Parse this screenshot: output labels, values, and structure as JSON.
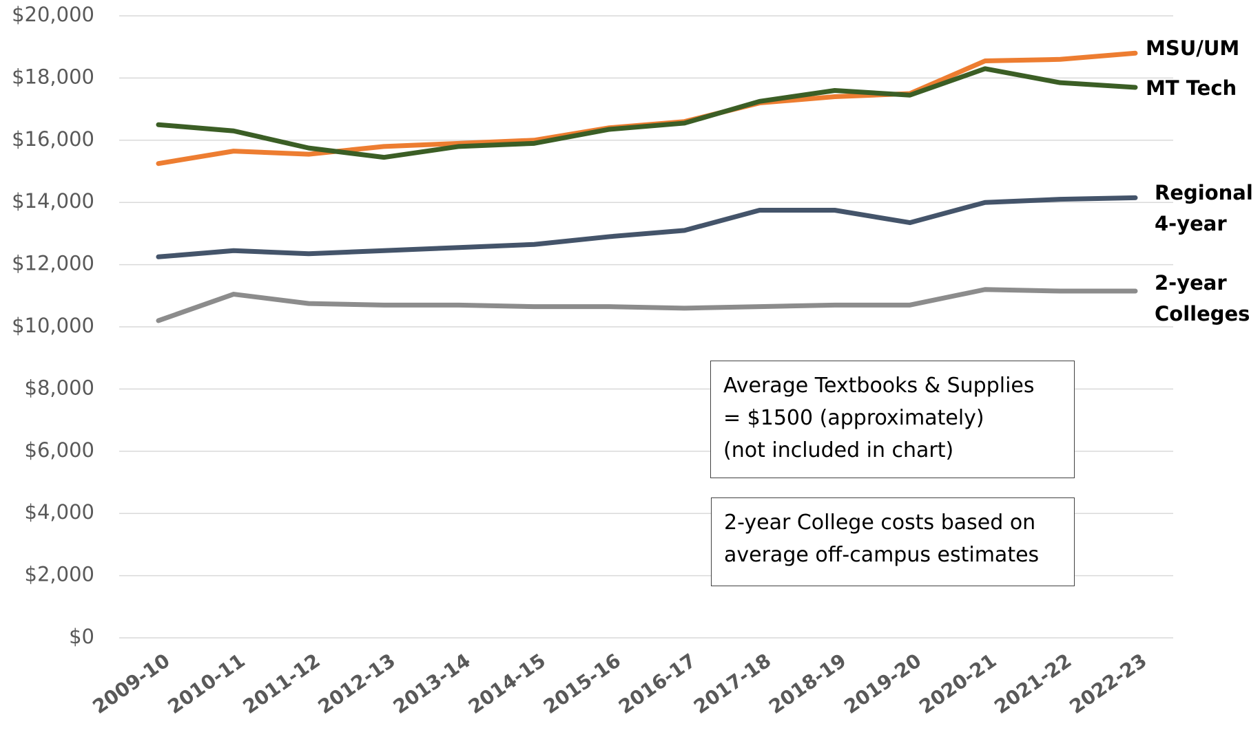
{
  "chart_data": {
    "type": "line",
    "categories": [
      "2009-10",
      "2010-11",
      "2011-12",
      "2012-13",
      "2013-14",
      "2014-15",
      "2015-16",
      "2016-17",
      "2017-18",
      "2018-19",
      "2019-20",
      "2020-21",
      "2021-22",
      "2022-23"
    ],
    "series": [
      {
        "name": "MSU/UM",
        "color": "#ed7d31",
        "values": [
          15250,
          15650,
          15550,
          15800,
          15900,
          16000,
          16400,
          16600,
          17200,
          17400,
          17500,
          18550,
          18600,
          18800
        ]
      },
      {
        "name": "MT Tech",
        "color": "#3b5e25",
        "values": [
          16500,
          16300,
          15750,
          15450,
          15800,
          15900,
          16350,
          16550,
          17250,
          17600,
          17450,
          18300,
          17850,
          17700
        ]
      },
      {
        "name": "Regional 4-year",
        "color": "#44546a",
        "values": [
          12250,
          12450,
          12350,
          12450,
          12550,
          12650,
          12900,
          13100,
          13750,
          13750,
          13350,
          14000,
          14100,
          14150
        ]
      },
      {
        "name": "2-year Colleges",
        "color": "#8c8c8c",
        "values": [
          10200,
          11050,
          10750,
          10700,
          10700,
          10650,
          10650,
          10600,
          10650,
          10700,
          10700,
          11200,
          11150,
          11150
        ]
      }
    ],
    "ylim": [
      0,
      20000
    ],
    "yticks": [
      {
        "value": 0,
        "label": "$0"
      },
      {
        "value": 2000,
        "label": "$2,000"
      },
      {
        "value": 4000,
        "label": "$4,000"
      },
      {
        "value": 6000,
        "label": "$6,000"
      },
      {
        "value": 8000,
        "label": "$8,000"
      },
      {
        "value": 10000,
        "label": "$10,000"
      },
      {
        "value": 12000,
        "label": "$12,000"
      },
      {
        "value": 14000,
        "label": "$14,000"
      },
      {
        "value": 16000,
        "label": "$16,000"
      },
      {
        "value": 18000,
        "label": "$18,000"
      },
      {
        "value": 20000,
        "label": "$20,000"
      }
    ],
    "grid": true,
    "annotations": [
      [
        "Average Textbooks & Supplies",
        "= $1500 (approximately)",
        "(not included in chart)"
      ],
      [
        "2-year College costs based on",
        "average off-campus estimates"
      ]
    ]
  }
}
